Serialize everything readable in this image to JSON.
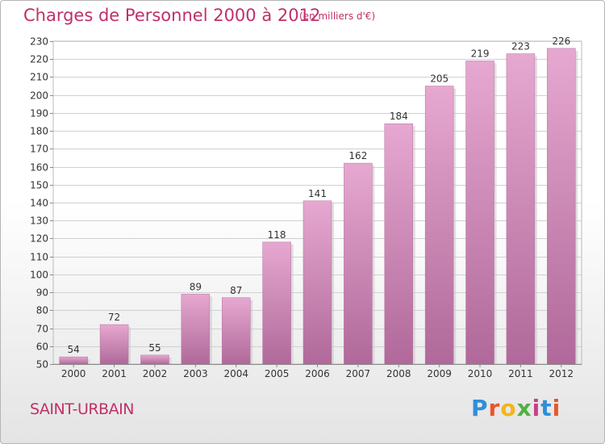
{
  "header": {
    "title": "Charges de Personnel 2000 à 2012",
    "subtitle": "(en milliers d'€)"
  },
  "footer": {
    "place": "SAINT-URBAIN",
    "brand": "Proxiti",
    "brand_colors": [
      "#2f8fd8",
      "#e8572a",
      "#f2b51c",
      "#52b043",
      "#c83f8a",
      "#2f8fd8",
      "#e8572a"
    ]
  },
  "colors": {
    "bar_light": "#e6a8d0",
    "bar_dark": "#b0699a",
    "text": "#333333",
    "accent": "#c0306a",
    "grid": "#d0d0d0"
  },
  "chart_data": {
    "type": "bar",
    "title": "Charges de Personnel 2000 à 2012",
    "subtitle": "(en milliers d'€)",
    "xlabel": "",
    "ylabel": "",
    "categories": [
      "2000",
      "2001",
      "2002",
      "2003",
      "2004",
      "2005",
      "2006",
      "2007",
      "2008",
      "2009",
      "2010",
      "2011",
      "2012"
    ],
    "values": [
      54,
      72,
      55,
      89,
      87,
      118,
      141,
      162,
      184,
      205,
      219,
      223,
      226
    ],
    "ylim": [
      50,
      230
    ],
    "yticks": [
      50,
      60,
      70,
      80,
      90,
      100,
      110,
      120,
      130,
      140,
      150,
      160,
      170,
      180,
      190,
      200,
      210,
      220,
      230
    ],
    "grid": true
  }
}
